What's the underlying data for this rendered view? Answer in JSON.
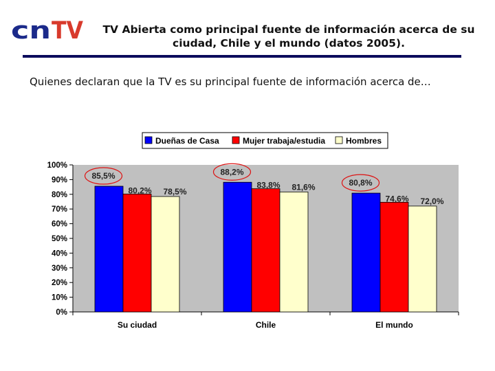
{
  "logo": {
    "part1": "cn",
    "part2": "TV",
    "color1": "#1b2a8a",
    "color2": "#d83a2c"
  },
  "header": {
    "title_line1": "TV Abierta como principal fuente de información acerca de su",
    "title_line2": "ciudad, Chile y el mundo (datos 2005)."
  },
  "subtitle": "Quienes declaran que la TV es su principal fuente de información acerca de…",
  "chart_data": {
    "type": "bar",
    "categories": [
      "Su ciudad",
      "Chile",
      "El mundo"
    ],
    "series": [
      {
        "name": "Dueñas de Casa",
        "color": "#0000ff",
        "values": [
          85.5,
          88.2,
          80.8
        ],
        "labels": [
          "85,5%",
          "88,2%",
          "80,8%"
        ]
      },
      {
        "name": "Mujer trabaja/estudia",
        "color": "#ff0000",
        "values": [
          80.2,
          83.8,
          74.6
        ],
        "labels": [
          "80,2%",
          "83,8%",
          "74,6%"
        ]
      },
      {
        "name": "Hombres",
        "color": "#ffffcc",
        "values": [
          78.5,
          81.6,
          72.0
        ],
        "labels": [
          "78,5%",
          "81,6%",
          "72,0%"
        ]
      }
    ],
    "ylim": [
      0,
      100
    ],
    "yticks": [
      "0%",
      "10%",
      "20%",
      "30%",
      "40%",
      "50%",
      "60%",
      "70%",
      "80%",
      "90%",
      "100%"
    ],
    "highlighted_series": "Dueñas de Casa",
    "plot_background": "#c0c0c0",
    "legend_position": "top",
    "grid": false
  }
}
